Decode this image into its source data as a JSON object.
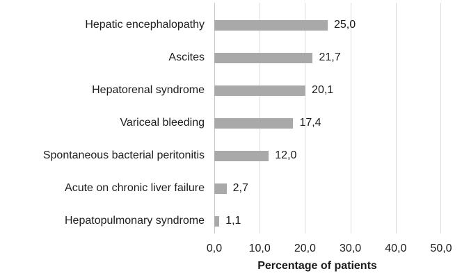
{
  "chart_data": {
    "type": "bar",
    "orientation": "horizontal",
    "categories": [
      "Hepatic encephalopathy",
      "Ascites",
      "Hepatorenal syndrome",
      "Variceal bleeding",
      "Spontaneous bacterial peritonitis",
      "Acute on chronic liver failure",
      "Hepatopulmonary syndrome"
    ],
    "values": [
      25.0,
      21.7,
      20.1,
      17.4,
      12.0,
      2.7,
      1.1
    ],
    "value_labels": [
      "25,0",
      "21,7",
      "20,1",
      "17,4",
      "12,0",
      "2,7",
      "1,1"
    ],
    "xlabel": "Percentage of patients",
    "xlim": [
      0,
      50
    ],
    "x_tick_values": [
      0,
      10,
      20,
      30,
      40,
      50
    ],
    "x_tick_labels": [
      "0,0",
      "10,0",
      "20,0",
      "30,0",
      "40,0",
      "50,0"
    ],
    "grid": "vertical",
    "legend": "none",
    "colors": {
      "bar": "#a9a9a9",
      "gridline": "#dcdcdc",
      "axis_line": "#c8c8c8",
      "text": "#1c1c1c",
      "background": "#ffffff"
    }
  }
}
